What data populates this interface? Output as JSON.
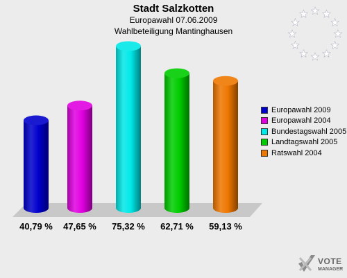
{
  "header": {
    "title": "Stadt Salzkotten",
    "subtitle": "Europawahl 07.06.2009",
    "subtitle2": "Wahlbeteiligung Mantinghausen"
  },
  "chart_data": {
    "type": "bar",
    "title": "Stadt Salzkotten",
    "categories": [
      "Europawahl 2009",
      "Europawahl 2004",
      "Bundestagswahl 2005",
      "Landtagswahl 2005",
      "Ratswahl 2004"
    ],
    "values": [
      40.79,
      47.65,
      75.32,
      62.71,
      59.13
    ],
    "value_labels": [
      "40,79 %",
      "47,65 %",
      "75,32 %",
      "62,71 %",
      "59,13 %"
    ],
    "colors": [
      "#0000cc",
      "#e000e0",
      "#00e8e8",
      "#00cc00",
      "#ee7700"
    ],
    "legend_position": "right",
    "grid": false
  },
  "legend": {
    "items": [
      "Europawahl 2009",
      "Europawahl 2004",
      "Bundestagswahl 2005",
      "Landtagswahl 2005",
      "Ratswahl 2004"
    ]
  },
  "logo": {
    "line1": "VOTE",
    "line2": "MANAGER"
  }
}
